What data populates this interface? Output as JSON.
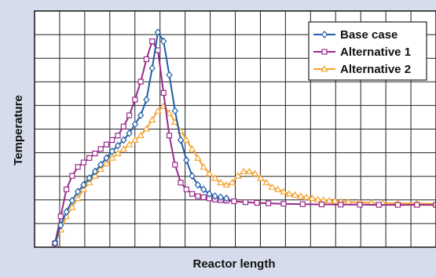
{
  "colors": {
    "background": "#d6dcec",
    "grid": "#222222",
    "base": "#1f5ea8",
    "alt1": "#9a2a8c",
    "alt2": "#f4a430"
  },
  "chart_data": {
    "type": "line",
    "title": "",
    "xlabel": "Reactor length",
    "ylabel": "Temperature",
    "xlim": [
      0,
      100
    ],
    "ylim": [
      0,
      100
    ],
    "grid": true,
    "tick_labels_shown": false,
    "legend_position": "top-right",
    "series": [
      {
        "name": "Base case",
        "marker": "diamond",
        "color": "#1f5ea8",
        "x": [
          0,
          1.5,
          3,
          4.5,
          6,
          7.5,
          9,
          10.5,
          12,
          13.5,
          15,
          16.5,
          18,
          19.5,
          21,
          22.5,
          24,
          25.5,
          27,
          28.5,
          30,
          31.5,
          33,
          34.5,
          36,
          37.5,
          39,
          40.5,
          42,
          43.5,
          45
        ],
        "y": [
          0,
          8,
          14,
          19,
          23,
          26,
          29,
          32,
          35,
          38,
          41,
          43.5,
          46,
          49,
          53,
          57,
          64,
          78,
          94,
          90,
          75,
          59,
          46,
          37,
          30,
          26,
          24,
          22,
          21,
          20.5,
          20
        ]
      },
      {
        "name": "Alternative 1",
        "marker": "square",
        "color": "#9a2a8c",
        "x": [
          0,
          1.5,
          3,
          4.5,
          6,
          7.5,
          9,
          10.5,
          12,
          13.5,
          15,
          16.5,
          18,
          19.5,
          21,
          22.5,
          24,
          25.5,
          27,
          28.5,
          30,
          31.5,
          33,
          34.5,
          36,
          37.5,
          39,
          40.5,
          42,
          43.5,
          45,
          47,
          50,
          53,
          56,
          60,
          65,
          70,
          75,
          80,
          85,
          90,
          95,
          100
        ],
        "y": [
          0,
          12,
          24,
          30,
          34,
          36,
          38,
          40,
          42,
          44,
          46,
          48,
          52,
          57,
          64,
          72,
          82,
          90,
          86,
          67,
          48,
          35,
          27,
          24,
          22,
          21,
          20.5,
          20,
          19.5,
          19.2,
          19,
          18.7,
          18.3,
          18,
          17.8,
          17.6,
          17.4,
          17.3,
          17.2,
          17.2,
          17.1,
          17.1,
          17.1,
          17.1
        ]
      },
      {
        "name": "Alternative 2",
        "marker": "triangle",
        "color": "#f4a430",
        "x": [
          0,
          1.5,
          3,
          4.5,
          6,
          7.5,
          9,
          10.5,
          12,
          13.5,
          15,
          16.5,
          18,
          19.5,
          21,
          22.5,
          24,
          25.5,
          27,
          28.5,
          30,
          31.5,
          33,
          34.5,
          36,
          37.5,
          39,
          40.5,
          42,
          43.5,
          45,
          46.5,
          48,
          49.5,
          51,
          52.5,
          54,
          55.5,
          57,
          58.5,
          60,
          61.5,
          63,
          64.5,
          66,
          67.5,
          69,
          70.5,
          72,
          73.5,
          75,
          77,
          80,
          83,
          86,
          90,
          95,
          100
        ],
        "y": [
          0,
          6,
          12,
          16,
          20,
          24,
          27,
          30,
          33,
          35.5,
          38,
          40,
          42,
          44,
          46,
          48,
          51,
          55,
          59,
          61,
          58,
          54,
          50,
          46,
          42,
          38,
          34,
          31,
          29,
          27,
          26,
          27,
          30,
          32,
          32,
          31,
          29,
          27,
          25,
          24,
          23,
          22,
          21.5,
          21,
          20.5,
          20,
          19.5,
          19.2,
          19,
          18.8,
          18.6,
          18.4,
          18.2,
          18,
          17.9,
          17.8,
          17.7,
          17.6
        ]
      }
    ]
  }
}
